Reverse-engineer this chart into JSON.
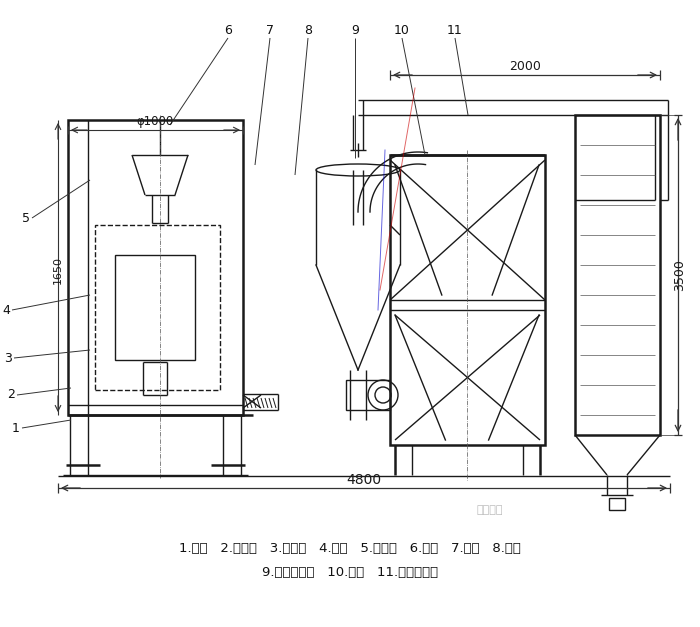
{
  "bg_color": "#ffffff",
  "line_color": "#1a1a1a",
  "lw": 1.0,
  "lw_thick": 1.8,
  "legend_line1": "1.底座   2.回风道   3.激振器   4.筛网   5.进料斗   6.风机   7.绞龙   8.料仓",
  "legend_line2": "9.旋风分离器   10.支架   11.布袋除尘器",
  "dim_2000": "2000",
  "dim_3500": "3500",
  "dim_4800": "4800",
  "dim_1650": "1650",
  "dim_phi1000": "φ1000",
  "watermark": "安決机械"
}
